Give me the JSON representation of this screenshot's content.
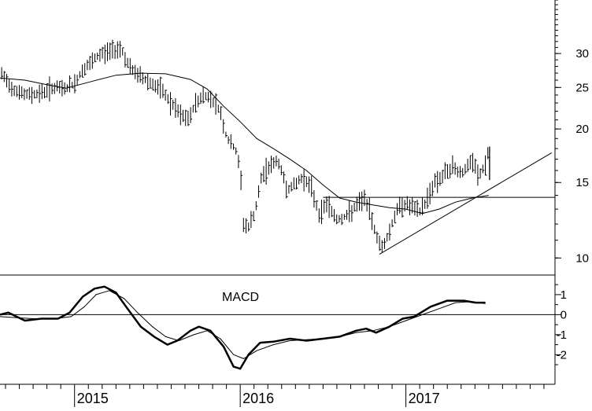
{
  "chart_data": [
    {
      "type": "line",
      "scale": "log",
      "grid": false,
      "y_ticks": [
        {
          "value": 30,
          "label": "30"
        },
        {
          "value": 25,
          "label": "25"
        },
        {
          "value": 20,
          "label": "20"
        },
        {
          "value": 15,
          "label": "15"
        },
        {
          "value": 10,
          "label": "10"
        }
      ],
      "ylim": [
        9.2,
        40
      ],
      "xlim": [
        2014.55,
        2017.9
      ],
      "years": [
        {
          "value": 2015.0,
          "label": "2015"
        },
        {
          "value": 2016.0,
          "label": "2016"
        },
        {
          "value": 2017.0,
          "label": "2017"
        }
      ],
      "price": [
        [
          2014.56,
          26.8
        ],
        [
          2014.62,
          25.0
        ],
        [
          2014.7,
          24.0
        ],
        [
          2014.8,
          24.3
        ],
        [
          2014.87,
          25.0
        ],
        [
          2014.93,
          24.8
        ],
        [
          2015.0,
          25.5
        ],
        [
          2015.05,
          27.5
        ],
        [
          2015.1,
          28.5
        ],
        [
          2015.15,
          29.8
        ],
        [
          2015.22,
          30.5
        ],
        [
          2015.28,
          31.0
        ],
        [
          2015.31,
          29.0
        ],
        [
          2015.34,
          27.5
        ],
        [
          2015.4,
          26.5
        ],
        [
          2015.47,
          25.5
        ],
        [
          2015.53,
          24.5
        ],
        [
          2015.58,
          23.0
        ],
        [
          2015.64,
          21.5
        ],
        [
          2015.69,
          21.0
        ],
        [
          2015.73,
          23.0
        ],
        [
          2015.78,
          24.0
        ],
        [
          2015.83,
          23.5
        ],
        [
          2015.88,
          22.0
        ],
        [
          2015.91,
          19.5
        ],
        [
          2015.94,
          18.5
        ],
        [
          2015.97,
          18.0
        ],
        [
          2016.0,
          16.0
        ],
        [
          2016.02,
          12.0
        ],
        [
          2016.05,
          11.8
        ],
        [
          2016.09,
          12.8
        ],
        [
          2016.13,
          15.5
        ],
        [
          2016.18,
          16.5
        ],
        [
          2016.23,
          16.8
        ],
        [
          2016.28,
          14.5
        ],
        [
          2016.33,
          14.8
        ],
        [
          2016.38,
          15.5
        ],
        [
          2016.43,
          14.5
        ],
        [
          2016.48,
          12.5
        ],
        [
          2016.52,
          13.5
        ],
        [
          2016.58,
          12.3
        ],
        [
          2016.64,
          12.5
        ],
        [
          2016.7,
          13.2
        ],
        [
          2016.75,
          13.8
        ],
        [
          2016.79,
          12.5
        ],
        [
          2016.83,
          11.0
        ],
        [
          2016.86,
          10.6
        ],
        [
          2016.9,
          11.5
        ],
        [
          2016.94,
          12.8
        ],
        [
          2016.98,
          13.4
        ],
        [
          2017.03,
          13.2
        ],
        [
          2017.08,
          12.8
        ],
        [
          2017.12,
          13.5
        ],
        [
          2017.17,
          15.0
        ],
        [
          2017.22,
          15.5
        ],
        [
          2017.28,
          16.3
        ],
        [
          2017.34,
          15.8
        ],
        [
          2017.4,
          16.8
        ],
        [
          2017.44,
          15.5
        ],
        [
          2017.48,
          16.5
        ],
        [
          2017.505,
          18.2
        ]
      ],
      "moving_average": [
        [
          2014.55,
          26.3
        ],
        [
          2014.7,
          26.0
        ],
        [
          2014.85,
          25.3
        ],
        [
          2014.95,
          24.9
        ],
        [
          2015.1,
          25.8
        ],
        [
          2015.25,
          26.7
        ],
        [
          2015.4,
          27.0
        ],
        [
          2015.55,
          26.9
        ],
        [
          2015.7,
          26.1
        ],
        [
          2015.8,
          24.8
        ],
        [
          2015.9,
          22.6
        ],
        [
          2016.0,
          20.8
        ],
        [
          2016.1,
          19.0
        ],
        [
          2016.2,
          18.0
        ],
        [
          2016.3,
          17.0
        ],
        [
          2016.4,
          16.0
        ],
        [
          2016.5,
          14.8
        ],
        [
          2016.6,
          13.8
        ],
        [
          2016.7,
          13.5
        ],
        [
          2016.8,
          13.3
        ],
        [
          2016.9,
          13.1
        ],
        [
          2017.0,
          13.0
        ],
        [
          2017.1,
          12.7
        ],
        [
          2017.2,
          13.0
        ],
        [
          2017.3,
          13.5
        ],
        [
          2017.4,
          13.8
        ],
        [
          2017.5,
          14.0
        ]
      ],
      "trend_lines": [
        {
          "from": [
            2016.84,
            10.2
          ],
          "to": [
            2017.88,
            17.6
          ]
        },
        {
          "from": [
            2016.5,
            13.85
          ],
          "to": [
            2017.9,
            13.85
          ]
        }
      ]
    },
    {
      "type": "line",
      "title": "MACD",
      "grid": false,
      "ylim": [
        -3.4,
        1.9
      ],
      "xlim": [
        2014.55,
        2017.9
      ],
      "y_ticks": [
        {
          "value": 1,
          "label": "1"
        },
        {
          "value": 0,
          "label": "0"
        },
        {
          "value": -1,
          "label": "-1"
        },
        {
          "value": -2,
          "label": "-2"
        }
      ],
      "zero_line": 0,
      "series": [
        {
          "style": "thick",
          "values": [
            [
              2014.55,
              0.0
            ],
            [
              2014.6,
              0.1
            ],
            [
              2014.7,
              -0.3
            ],
            [
              2014.8,
              -0.2
            ],
            [
              2014.9,
              -0.2
            ],
            [
              2014.97,
              0.1
            ],
            [
              2015.05,
              0.9
            ],
            [
              2015.12,
              1.3
            ],
            [
              2015.18,
              1.4
            ],
            [
              2015.25,
              1.1
            ],
            [
              2015.32,
              0.3
            ],
            [
              2015.4,
              -0.6
            ],
            [
              2015.48,
              -1.1
            ],
            [
              2015.56,
              -1.5
            ],
            [
              2015.62,
              -1.3
            ],
            [
              2015.7,
              -0.8
            ],
            [
              2015.75,
              -0.6
            ],
            [
              2015.82,
              -0.8
            ],
            [
              2015.9,
              -1.6
            ],
            [
              2015.96,
              -2.6
            ],
            [
              2016.0,
              -2.7
            ],
            [
              2016.05,
              -2.0
            ],
            [
              2016.12,
              -1.4
            ],
            [
              2016.2,
              -1.35
            ],
            [
              2016.3,
              -1.2
            ],
            [
              2016.4,
              -1.3
            ],
            [
              2016.5,
              -1.2
            ],
            [
              2016.6,
              -1.1
            ],
            [
              2016.7,
              -0.8
            ],
            [
              2016.76,
              -0.7
            ],
            [
              2016.82,
              -0.9
            ],
            [
              2016.9,
              -0.6
            ],
            [
              2016.98,
              -0.2
            ],
            [
              2017.05,
              -0.1
            ],
            [
              2017.15,
              0.4
            ],
            [
              2017.25,
              0.7
            ],
            [
              2017.35,
              0.7
            ],
            [
              2017.42,
              0.6
            ],
            [
              2017.48,
              0.6
            ]
          ]
        },
        {
          "style": "thin",
          "values": [
            [
              2014.55,
              -0.1
            ],
            [
              2014.65,
              -0.15
            ],
            [
              2014.75,
              -0.2
            ],
            [
              2014.88,
              -0.2
            ],
            [
              2014.98,
              -0.1
            ],
            [
              2015.06,
              0.4
            ],
            [
              2015.13,
              1.0
            ],
            [
              2015.21,
              1.2
            ],
            [
              2015.3,
              0.8
            ],
            [
              2015.38,
              0.1
            ],
            [
              2015.47,
              -0.6
            ],
            [
              2015.55,
              -1.1
            ],
            [
              2015.63,
              -1.3
            ],
            [
              2015.72,
              -1.0
            ],
            [
              2015.8,
              -0.8
            ],
            [
              2015.88,
              -1.2
            ],
            [
              2015.96,
              -2.0
            ],
            [
              2016.02,
              -2.2
            ],
            [
              2016.1,
              -1.8
            ],
            [
              2016.2,
              -1.5
            ],
            [
              2016.3,
              -1.3
            ],
            [
              2016.4,
              -1.25
            ],
            [
              2016.5,
              -1.2
            ],
            [
              2016.6,
              -1.1
            ],
            [
              2016.7,
              -0.9
            ],
            [
              2016.8,
              -0.8
            ],
            [
              2016.9,
              -0.6
            ],
            [
              2017.0,
              -0.3
            ],
            [
              2017.1,
              0.0
            ],
            [
              2017.2,
              0.3
            ],
            [
              2017.3,
              0.6
            ],
            [
              2017.4,
              0.65
            ],
            [
              2017.48,
              0.55
            ]
          ]
        }
      ]
    }
  ]
}
